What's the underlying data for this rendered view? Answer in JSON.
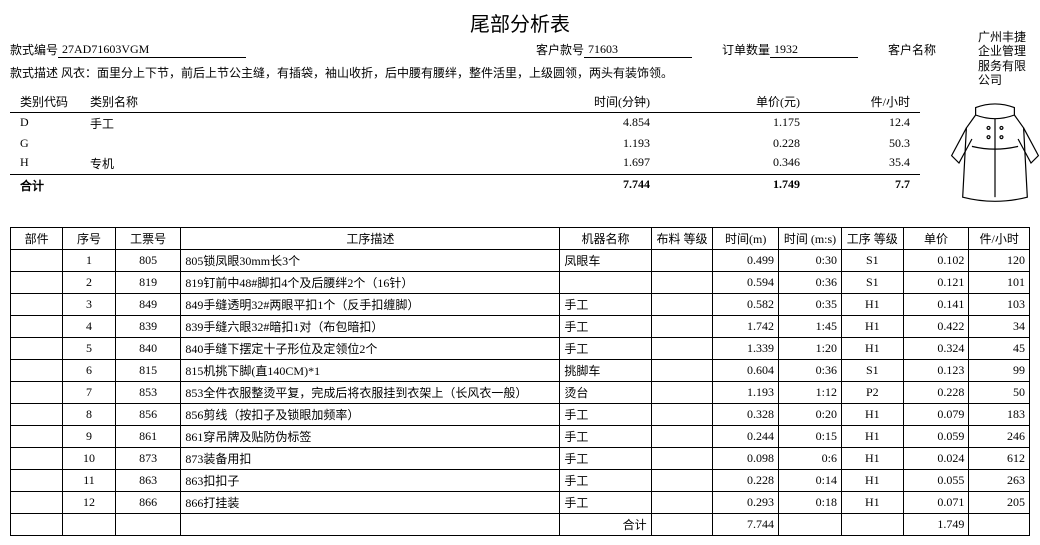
{
  "title": "尾部分析表",
  "company": {
    "l1": "广州丰捷",
    "l2": "企业管理",
    "l3": "服务有限",
    "l4": "公司"
  },
  "header": {
    "style_no_label": "款式编号",
    "style_no": "27AD71603VGM",
    "cust_no_label": "客户款号",
    "cust_no": "71603",
    "order_qty_label": "订单数量",
    "order_qty": "1932",
    "cust_name_label": "客户名称"
  },
  "desc": {
    "label": "款式描述",
    "text": "风衣：面里分上下节，前后上节公主缝，有插袋，袖山收折，后中腰有腰绊，整件活里，上级圆领，两头有装饰领。"
  },
  "sum_head": {
    "code": "类别代码",
    "name": "类别名称",
    "time": "时间(分钟)",
    "price": "单价(元)",
    "rate": "件/小时"
  },
  "sum_rows": [
    {
      "code": "D",
      "name": "手工",
      "time": "4.854",
      "price": "1.175",
      "rate": "12.4"
    },
    {
      "code": "G",
      "name": "",
      "time": "1.193",
      "price": "0.228",
      "rate": "50.3"
    },
    {
      "code": "H",
      "name": "专机",
      "time": "1.697",
      "price": "0.346",
      "rate": "35.4"
    }
  ],
  "sum_total": {
    "label": "合计",
    "time": "7.744",
    "price": "1.749",
    "rate": "7.7"
  },
  "det_head": {
    "part": "部件",
    "seq": "序号",
    "tk": "工票号",
    "desc": "工序描述",
    "mach": "机器名称",
    "grade": "布料\n等级",
    "tmin": "时间(m)",
    "tms": "时间\n(m:s)",
    "proc": "工序\n等级",
    "up": "单价",
    "ph": "件/小时"
  },
  "rows": [
    {
      "seq": "1",
      "tk": "805",
      "desc": "805锁凤眼30mm长3个",
      "mach": "凤眼车",
      "grade": "",
      "tmin": "0.499",
      "tms": "0:30",
      "proc": "S1",
      "up": "0.102",
      "ph": "120"
    },
    {
      "seq": "2",
      "tk": "819",
      "desc": "819钉前中48#脚扣4个及后腰绊2个（16针）",
      "mach": "",
      "grade": "",
      "tmin": "0.594",
      "tms": "0:36",
      "proc": "S1",
      "up": "0.121",
      "ph": "101"
    },
    {
      "seq": "3",
      "tk": "849",
      "desc": "849手缝透明32#两眼平扣1个（反手扣缠脚）",
      "mach": "手工",
      "grade": "",
      "tmin": "0.582",
      "tms": "0:35",
      "proc": "H1",
      "up": "0.141",
      "ph": "103"
    },
    {
      "seq": "4",
      "tk": "839",
      "desc": "839手缝六眼32#暗扣1对（布包暗扣）",
      "mach": "手工",
      "grade": "",
      "tmin": "1.742",
      "tms": "1:45",
      "proc": "H1",
      "up": "0.422",
      "ph": "34"
    },
    {
      "seq": "5",
      "tk": "840",
      "desc": "840手缝下摆定十子形位及定领位2个",
      "mach": "手工",
      "grade": "",
      "tmin": "1.339",
      "tms": "1:20",
      "proc": "H1",
      "up": "0.324",
      "ph": "45"
    },
    {
      "seq": "6",
      "tk": "815",
      "desc": "815机挑下脚(直140CM)*1",
      "mach": "挑脚车",
      "grade": "",
      "tmin": "0.604",
      "tms": "0:36",
      "proc": "S1",
      "up": "0.123",
      "ph": "99"
    },
    {
      "seq": "7",
      "tk": "853",
      "desc": "853全件衣服整烫平复，完成后将衣服挂到衣架上（长风衣一般）",
      "mach": "烫台",
      "grade": "",
      "tmin": "1.193",
      "tms": "1:12",
      "proc": "P2",
      "up": "0.228",
      "ph": "50"
    },
    {
      "seq": "8",
      "tk": "856",
      "desc": "856剪线（按扣子及锁眼加频率）",
      "mach": "手工",
      "grade": "",
      "tmin": "0.328",
      "tms": "0:20",
      "proc": "H1",
      "up": "0.079",
      "ph": "183"
    },
    {
      "seq": "9",
      "tk": "861",
      "desc": "861穿吊牌及贴防伪标签",
      "mach": "手工",
      "grade": "",
      "tmin": "0.244",
      "tms": "0:15",
      "proc": "H1",
      "up": "0.059",
      "ph": "246"
    },
    {
      "seq": "10",
      "tk": "873",
      "desc": "873装备用扣",
      "mach": "手工",
      "grade": "",
      "tmin": "0.098",
      "tms": "0:6",
      "proc": "H1",
      "up": "0.024",
      "ph": "612"
    },
    {
      "seq": "11",
      "tk": "863",
      "desc": "863扣扣子",
      "mach": "手工",
      "grade": "",
      "tmin": "0.228",
      "tms": "0:14",
      "proc": "H1",
      "up": "0.055",
      "ph": "263"
    },
    {
      "seq": "12",
      "tk": "866",
      "desc": "866打挂装",
      "mach": "手工",
      "grade": "",
      "tmin": "0.293",
      "tms": "0:18",
      "proc": "H1",
      "up": "0.071",
      "ph": "205"
    }
  ],
  "det_total": {
    "label": "合计",
    "tmin": "7.744",
    "up": "1.749"
  }
}
